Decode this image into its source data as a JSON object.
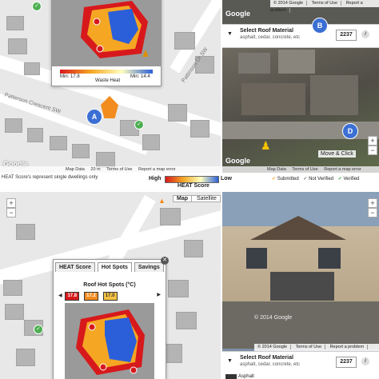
{
  "top_left_map": {
    "street_1": "Pattinson Dr SW",
    "street_2": "Patterson Crescent SW",
    "google_label": "Google",
    "footer": [
      "Map Data",
      "20 m",
      "Terms of Use",
      "Report a map error"
    ],
    "heat_popup": {
      "min_label": "Min: 17.8",
      "max_label": "Min: 14.4",
      "mid_label": "Waste Heat"
    },
    "badge_a": "A"
  },
  "top_right_streetview": {
    "google_label": "Google",
    "tabs": [
      "© 2014 Google",
      "Terms of Use",
      "Report a problem"
    ],
    "roof": {
      "title": "Select Roof Material",
      "subtitle": "asphalt, cedar, concrete, etc",
      "number": "2237",
      "info": "i"
    },
    "badge_b": "B",
    "badge_d": "D",
    "move_click": "Move & Click",
    "google_bottom": "Google",
    "footer": [
      "Map Data",
      "Terms of Use",
      "Report a map error"
    ]
  },
  "legend_strip": {
    "note": "HEAT Score's represent single dwellings only",
    "high": "High",
    "title": "HEAT Score",
    "low": "Low",
    "statuses": [
      "Submitted",
      "Not Verified",
      "Verified"
    ]
  },
  "bottom_left_map": {
    "map_button": "Map",
    "satellite_button": "Satellite",
    "tabs": [
      "HEAT Score",
      "Hot Spots",
      "Savings"
    ],
    "hot_spots_title": "Roof Hot Spots (°C)",
    "hot_spot_values": [
      "17.8",
      "17.2",
      "17.0"
    ]
  },
  "bottom_right_streetview": {
    "watermark": "© 2014 Google",
    "tabs": [
      "© 2014 Google",
      "Terms of Use",
      "Report a problem"
    ],
    "roof": {
      "title": "Select Roof Material",
      "subtitle": "asphalt, cedar, concrete, etc",
      "number": "2237",
      "info": "i"
    },
    "asphalt_label": "Asphalt"
  },
  "colors": {
    "heat_high": "#d7191c",
    "heat_mid": "#f5a623",
    "heat_low": "#2b5fd9",
    "badge_blue": "#3b6fd4",
    "verified_green": "#4caf50"
  }
}
